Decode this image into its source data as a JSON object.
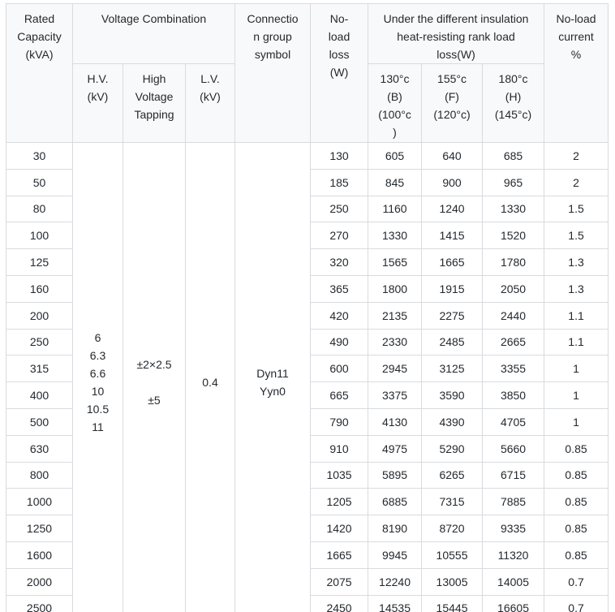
{
  "table": {
    "headers": {
      "rated_capacity": "Rated\nCapacity\n(kVA)",
      "voltage_combination": "Voltage Combination",
      "hv": "H.V.\n(kV)",
      "high_voltage_tapping": "High\nVoltage\nTapping",
      "lv": "L.V.\n(kV)",
      "connection_group": "Connectio\nn group\nsymbol",
      "no_load_loss": "No-\nload\nloss\n(W)",
      "load_loss_group": "Under the different insulation\nheat-resisting rank load\nloss(W)",
      "rank_130": "130°c\n(B)\n(100°c\n)",
      "rank_155": "155°c\n(F)\n(120°c)",
      "rank_180": "180°c\n(H)\n(145°c)",
      "no_load_current": "No-load\ncurrent\n%"
    },
    "merged": {
      "hv_values": "6\n6.3\n6.6\n10\n10.5\n11",
      "tapping_values": "±2×2.5\n\n±5",
      "lv_value": "0.4",
      "connection_values": "Dyn11\nYyn0"
    },
    "rows": [
      {
        "capacity": "30",
        "no_load_loss": "130",
        "loss_130": "605",
        "loss_155": "640",
        "loss_180": "685",
        "no_load_current": "2"
      },
      {
        "capacity": "50",
        "no_load_loss": "185",
        "loss_130": "845",
        "loss_155": "900",
        "loss_180": "965",
        "no_load_current": "2"
      },
      {
        "capacity": "80",
        "no_load_loss": "250",
        "loss_130": "1160",
        "loss_155": "1240",
        "loss_180": "1330",
        "no_load_current": "1.5"
      },
      {
        "capacity": "100",
        "no_load_loss": "270",
        "loss_130": "1330",
        "loss_155": "1415",
        "loss_180": "1520",
        "no_load_current": "1.5"
      },
      {
        "capacity": "125",
        "no_load_loss": "320",
        "loss_130": "1565",
        "loss_155": "1665",
        "loss_180": "1780",
        "no_load_current": "1.3"
      },
      {
        "capacity": "160",
        "no_load_loss": "365",
        "loss_130": "1800",
        "loss_155": "1915",
        "loss_180": "2050",
        "no_load_current": "1.3"
      },
      {
        "capacity": "200",
        "no_load_loss": "420",
        "loss_130": "2135",
        "loss_155": "2275",
        "loss_180": "2440",
        "no_load_current": "1.1"
      },
      {
        "capacity": "250",
        "no_load_loss": "490",
        "loss_130": "2330",
        "loss_155": "2485",
        "loss_180": "2665",
        "no_load_current": "1.1"
      },
      {
        "capacity": "315",
        "no_load_loss": "600",
        "loss_130": "2945",
        "loss_155": "3125",
        "loss_180": "3355",
        "no_load_current": "1"
      },
      {
        "capacity": "400",
        "no_load_loss": "665",
        "loss_130": "3375",
        "loss_155": "3590",
        "loss_180": "3850",
        "no_load_current": "1"
      },
      {
        "capacity": "500",
        "no_load_loss": "790",
        "loss_130": "4130",
        "loss_155": "4390",
        "loss_180": "4705",
        "no_load_current": "1"
      },
      {
        "capacity": "630",
        "no_load_loss": "910",
        "loss_130": "4975",
        "loss_155": "5290",
        "loss_180": "5660",
        "no_load_current": "0.85"
      },
      {
        "capacity": "800",
        "no_load_loss": "1035",
        "loss_130": "5895",
        "loss_155": "6265",
        "loss_180": "6715",
        "no_load_current": "0.85"
      },
      {
        "capacity": "1000",
        "no_load_loss": "1205",
        "loss_130": "6885",
        "loss_155": "7315",
        "loss_180": "7885",
        "no_load_current": "0.85"
      },
      {
        "capacity": "1250",
        "no_load_loss": "1420",
        "loss_130": "8190",
        "loss_155": "8720",
        "loss_180": "9335",
        "no_load_current": "0.85"
      },
      {
        "capacity": "1600",
        "no_load_loss": "1665",
        "loss_130": "9945",
        "loss_155": "10555",
        "loss_180": "11320",
        "no_load_current": "0.85"
      },
      {
        "capacity": "2000",
        "no_load_loss": "2075",
        "loss_130": "12240",
        "loss_155": "13005",
        "loss_180": "14005",
        "no_load_current": "0.7"
      },
      {
        "capacity": "2500",
        "no_load_loss": "2450",
        "loss_130": "14535",
        "loss_155": "15445",
        "loss_180": "16605",
        "no_load_current": "0.7"
      }
    ]
  },
  "colors": {
    "header_background": "#f8f9fa",
    "border": "#d8dbde",
    "bottom_border": "#cdd0d4",
    "text": "#24292e"
  }
}
